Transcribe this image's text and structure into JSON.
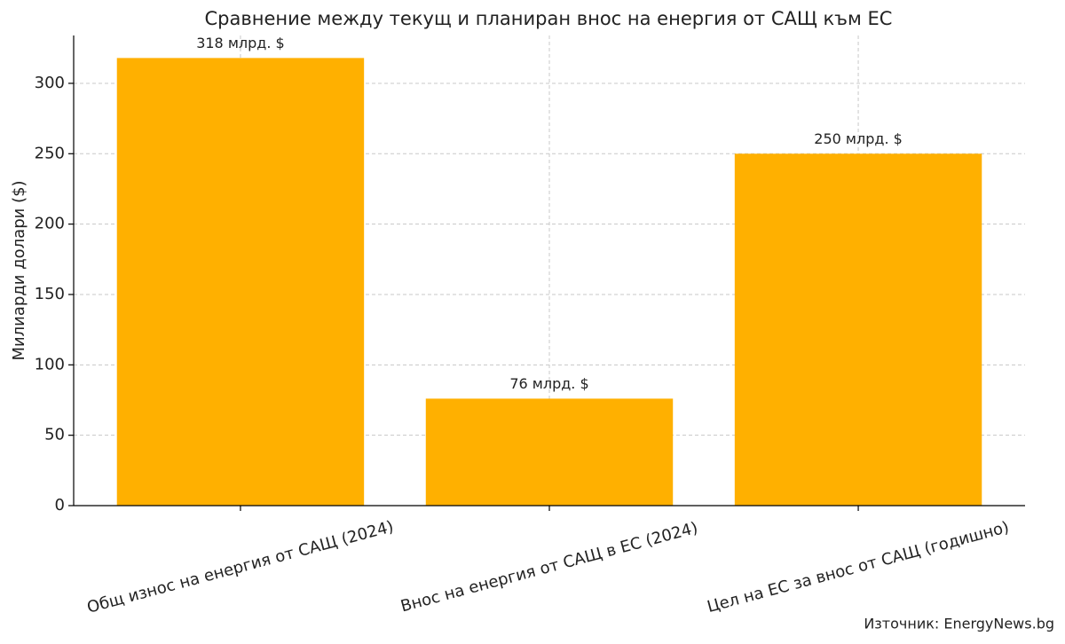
{
  "chart_data": {
    "type": "bar",
    "title": "Сравнение между текущ и планиран внос на енергия от САЩ към ЕС",
    "y_label": "Милиарди долари ($)",
    "categories": [
      "Общ износ на енергия от САЩ (2024)",
      "Внос на енергия от САЩ в ЕС (2024)",
      "Цел на ЕС за внос от САЩ (годишно)"
    ],
    "values": [
      318,
      76,
      250
    ],
    "value_labels": [
      "318 млрд. $",
      "76 млрд. $",
      "250 млрд. $"
    ],
    "color": "#ffb000",
    "ylim": [
      0,
      334
    ],
    "yticks": [
      0,
      50,
      100,
      150,
      200,
      250,
      300
    ],
    "grid": true,
    "source": "Източник: EnergyNews.bg"
  }
}
